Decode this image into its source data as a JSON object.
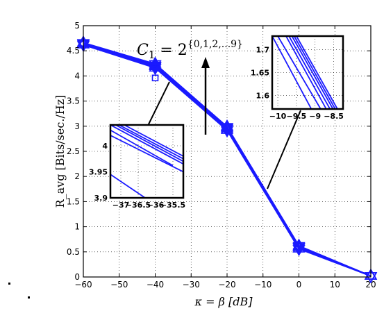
{
  "chart_data": {
    "type": "line",
    "xlabel": "κ = β  [dB]",
    "ylabel": "R_avg  [Bits/sec./Hz]",
    "xlim": [
      -60,
      20
    ],
    "ylim": [
      0,
      5
    ],
    "xticks": [
      "−60",
      "−50",
      "−40",
      "−30",
      "−20",
      "−10",
      "0",
      "10",
      "20"
    ],
    "yticks": [
      "0",
      "0.5",
      "1",
      "1.5",
      "2",
      "2.5",
      "3",
      "3.5",
      "4",
      "4.5",
      "5"
    ],
    "grid": true,
    "color": "#1a1aff",
    "marker": "hexagram",
    "x": [
      -60,
      -40,
      -20,
      0,
      20
    ],
    "series": [
      {
        "values": [
          4.66,
          4.24,
          2.99,
          0.62,
          0.02
        ]
      },
      {
        "values": [
          4.65,
          4.22,
          2.98,
          0.61,
          0.02
        ]
      },
      {
        "values": [
          4.65,
          4.21,
          2.97,
          0.6,
          0.02
        ]
      },
      {
        "values": [
          4.64,
          4.2,
          2.96,
          0.6,
          0.02
        ]
      },
      {
        "values": [
          4.64,
          4.19,
          2.95,
          0.59,
          0.02
        ]
      },
      {
        "values": [
          4.63,
          4.18,
          2.94,
          0.58,
          0.02
        ]
      },
      {
        "values": [
          4.62,
          4.16,
          2.92,
          0.56,
          0.02
        ]
      }
    ],
    "annotation": {
      "text": "C",
      "subscript": "1",
      "eq": " = 2",
      "sup": "{0,1,2,...9}"
    },
    "insets": [
      {
        "xticks": [
          "−37",
          "−36.5",
          "−36",
          "−35.5"
        ],
        "yticks": [
          "3.9",
          "3.95",
          "4"
        ],
        "xlim": [
          -37.3,
          -35.2
        ],
        "ylim": [
          3.9,
          4.04
        ],
        "lines": [
          [
            [
              -37.3,
              4.04
            ],
            [
              -35.2,
              3.965
            ]
          ],
          [
            [
              -37.15,
              4.04
            ],
            [
              -35.2,
              3.97
            ]
          ],
          [
            [
              -37.05,
              4.04
            ],
            [
              -35.2,
              3.975
            ]
          ],
          [
            [
              -36.9,
              4.04
            ],
            [
              -35.2,
              3.98
            ]
          ],
          [
            [
              -37.3,
              4.03
            ],
            [
              -35.5,
              3.962
            ]
          ],
          [
            [
              -37.3,
              4.02
            ],
            [
              -35.2,
              3.95
            ]
          ],
          [
            [
              -37.3,
              3.945
            ],
            [
              -36.3,
              3.9
            ]
          ]
        ]
      },
      {
        "xticks": [
          "−10",
          "−9.5",
          "−9",
          "−8.5"
        ],
        "yticks": [
          "1.6",
          "1.65",
          "1.7"
        ],
        "xlim": [
          -10.15,
          -8.25
        ],
        "ylim": [
          1.57,
          1.73
        ],
        "lines": [
          [
            [
              -10.15,
              1.73
            ],
            [
              -9.1,
              1.57
            ]
          ],
          [
            [
              -10.0,
              1.73
            ],
            [
              -8.85,
              1.57
            ]
          ],
          [
            [
              -9.78,
              1.73
            ],
            [
              -8.7,
              1.57
            ]
          ],
          [
            [
              -9.7,
              1.73
            ],
            [
              -8.6,
              1.57
            ]
          ],
          [
            [
              -9.62,
              1.73
            ],
            [
              -8.52,
              1.57
            ]
          ],
          [
            [
              -9.56,
              1.73
            ],
            [
              -8.46,
              1.57
            ]
          ],
          [
            [
              -9.5,
              1.73
            ],
            [
              -8.4,
              1.57
            ]
          ]
        ]
      }
    ]
  }
}
